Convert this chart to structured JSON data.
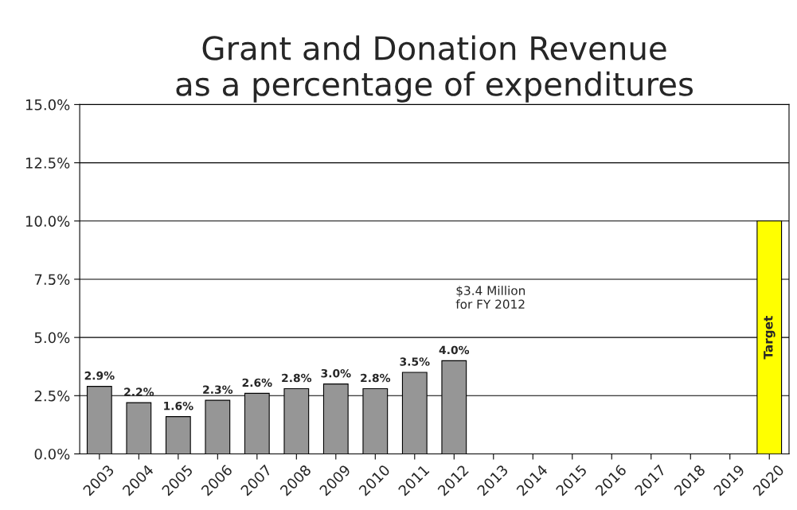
{
  "chart_data": {
    "type": "bar",
    "title": "Grant and Donation Revenue\nas a percentage of expenditures",
    "categories": [
      "2003",
      "2004",
      "2005",
      "2006",
      "2007",
      "2008",
      "2009",
      "2010",
      "2011",
      "2012",
      "2013",
      "2014",
      "2015",
      "2016",
      "2017",
      "2018",
      "2019",
      "2020"
    ],
    "values": [
      2.9,
      2.2,
      1.6,
      2.3,
      2.6,
      2.8,
      3.0,
      2.8,
      3.5,
      4.0,
      null,
      null,
      null,
      null,
      null,
      null,
      null,
      10
    ],
    "colors": [
      "#969696",
      "#969696",
      "#969696",
      "#969696",
      "#969696",
      "#969696",
      "#969696",
      "#969696",
      "#969696",
      "#969696",
      "#969696",
      "#969696",
      "#969696",
      "#969696",
      "#969696",
      "#969696",
      "#969696",
      "#ffff00"
    ],
    "value_labels": [
      "2.9%",
      "2.2%",
      "1.6%",
      "2.3%",
      "2.6%",
      "2.8%",
      "3.0%",
      "2.8%",
      "3.5%",
      "4.0%",
      null,
      null,
      null,
      null,
      null,
      null,
      null,
      "Target"
    ],
    "ylim": [
      0,
      15
    ],
    "yticks": [
      {
        "value": 0,
        "label": "0.0%"
      },
      {
        "value": 2.5,
        "label": "2.5%"
      },
      {
        "value": 5,
        "label": "5.0%"
      },
      {
        "value": 7.5,
        "label": "7.5%"
      },
      {
        "value": 10,
        "label": "10.0%"
      },
      {
        "value": 12.5,
        "label": "12.5%"
      },
      {
        "value": 15,
        "label": "15.0%"
      }
    ],
    "grid": "y",
    "annotations": [
      "$3.4 Million\nfor FY 2012"
    ]
  }
}
